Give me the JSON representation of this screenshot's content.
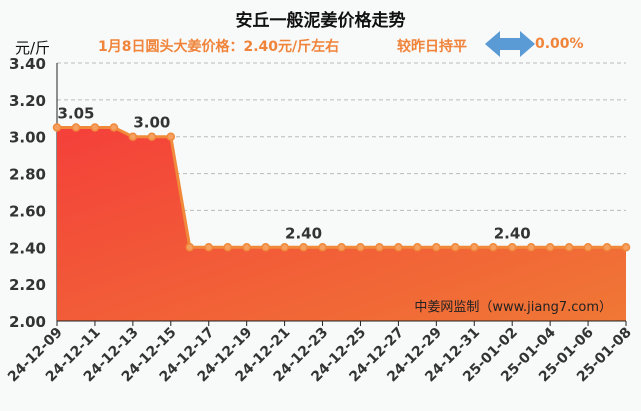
{
  "chart_data": {
    "type": "area",
    "title": "安丘一般泥姜价格走势",
    "ylabel": "元/斤",
    "subtitle": "1月8日圆头大姜价格：2.40元/斤左右",
    "comparison": "较昨日持平",
    "change": "0.00%",
    "watermark": "中姜网监制（www.jiang7.com）",
    "ylim": [
      2.0,
      3.4
    ],
    "yticks": [
      "2.00",
      "2.20",
      "2.40",
      "2.60",
      "2.80",
      "3.00",
      "3.20",
      "3.40"
    ],
    "xticks": [
      "24-12-09",
      "24-12-11",
      "24-12-13",
      "24-12-15",
      "24-12-17",
      "24-12-19",
      "24-12-21",
      "24-12-23",
      "24-12-25",
      "24-12-27",
      "24-12-29",
      "24-12-31",
      "25-01-02",
      "25-01-04",
      "25-01-06",
      "25-01-08"
    ],
    "values": [
      3.05,
      3.05,
      3.05,
      3.05,
      3.0,
      3.0,
      3.0,
      2.4,
      2.4,
      2.4,
      2.4,
      2.4,
      2.4,
      2.4,
      2.4,
      2.4,
      2.4,
      2.4,
      2.4,
      2.4,
      2.4,
      2.4,
      2.4,
      2.4,
      2.4,
      2.4,
      2.4,
      2.4,
      2.4,
      2.4,
      2.4
    ],
    "data_labels": [
      {
        "index": 1,
        "text": "3.05"
      },
      {
        "index": 5,
        "text": "3.00"
      },
      {
        "index": 13,
        "text": "2.40"
      },
      {
        "index": 24,
        "text": "2.40"
      }
    ],
    "colors": {
      "line": "#f08a3a",
      "fill_top": "#f4403a",
      "fill_bottom": "#f07a35",
      "arrow": "#5b9bd5"
    }
  }
}
